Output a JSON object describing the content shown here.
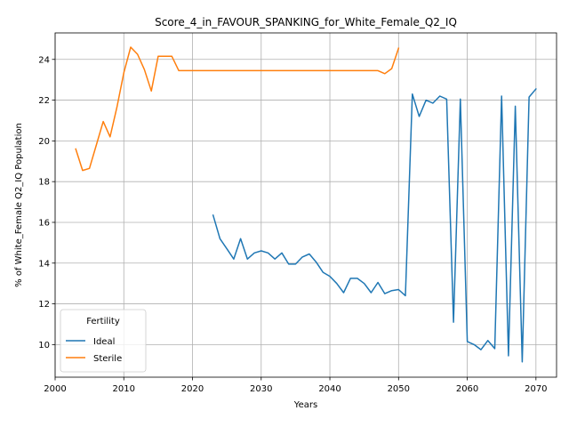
{
  "chart_data": {
    "type": "line",
    "title": "Score_4_in_FAVOUR_SPANKING_for_White_Female_Q2_IQ",
    "xlabel": "Years",
    "ylabel": "% of White_Female Q2_IQ Population",
    "xlim": [
      2000,
      2073
    ],
    "ylim": [
      8.4,
      25.3
    ],
    "xticks": [
      2000,
      2010,
      2020,
      2030,
      2040,
      2050,
      2060,
      2070
    ],
    "yticks": [
      10,
      12,
      14,
      16,
      18,
      20,
      22,
      24
    ],
    "grid": true,
    "legend": {
      "title": "Fertility",
      "placement": "lower-left"
    },
    "series": [
      {
        "name": "Ideal",
        "color": "#1f77b4",
        "points": [
          [
            2023,
            16.35
          ],
          [
            2024,
            15.2
          ],
          [
            2025,
            14.7
          ],
          [
            2026,
            14.2
          ],
          [
            2027,
            15.2
          ],
          [
            2028,
            14.2
          ],
          [
            2029,
            14.5
          ],
          [
            2030,
            14.6
          ],
          [
            2031,
            14.5
          ],
          [
            2032,
            14.2
          ],
          [
            2033,
            14.5
          ],
          [
            2034,
            13.95
          ],
          [
            2035,
            13.95
          ],
          [
            2036,
            14.3
          ],
          [
            2037,
            14.45
          ],
          [
            2038,
            14.05
          ],
          [
            2039,
            13.55
          ],
          [
            2040,
            13.35
          ],
          [
            2041,
            13.0
          ],
          [
            2042,
            12.55
          ],
          [
            2043,
            13.25
          ],
          [
            2044,
            13.25
          ],
          [
            2045,
            13.0
          ],
          [
            2046,
            12.55
          ],
          [
            2047,
            13.05
          ],
          [
            2048,
            12.5
          ],
          [
            2049,
            12.65
          ],
          [
            2050,
            12.7
          ],
          [
            2051,
            12.4
          ],
          [
            2052,
            22.3
          ],
          [
            2053,
            21.2
          ],
          [
            2054,
            22.0
          ],
          [
            2055,
            21.85
          ],
          [
            2056,
            22.2
          ],
          [
            2057,
            22.05
          ],
          [
            2058,
            11.1
          ],
          [
            2059,
            22.05
          ],
          [
            2060,
            10.15
          ],
          [
            2061,
            10.0
          ],
          [
            2062,
            9.75
          ],
          [
            2063,
            10.2
          ],
          [
            2064,
            9.8
          ],
          [
            2065,
            22.2
          ],
          [
            2066,
            9.45
          ],
          [
            2067,
            21.7
          ],
          [
            2068,
            9.15
          ],
          [
            2069,
            22.15
          ],
          [
            2070,
            22.55
          ]
        ]
      },
      {
        "name": "Sterile",
        "color": "#ff7f0e",
        "points": [
          [
            2003,
            19.6
          ],
          [
            2004,
            18.55
          ],
          [
            2005,
            18.65
          ],
          [
            2006,
            19.8
          ],
          [
            2007,
            20.95
          ],
          [
            2008,
            20.2
          ],
          [
            2009,
            21.65
          ],
          [
            2010,
            23.35
          ],
          [
            2011,
            24.6
          ],
          [
            2012,
            24.25
          ],
          [
            2013,
            23.5
          ],
          [
            2014,
            22.45
          ],
          [
            2015,
            24.15
          ],
          [
            2016,
            24.15
          ],
          [
            2017,
            24.15
          ],
          [
            2018,
            23.45
          ],
          [
            2019,
            23.45
          ],
          [
            2020,
            23.45
          ],
          [
            2025,
            23.45
          ],
          [
            2030,
            23.45
          ],
          [
            2035,
            23.45
          ],
          [
            2040,
            23.45
          ],
          [
            2045,
            23.45
          ],
          [
            2047,
            23.45
          ],
          [
            2048,
            23.3
          ],
          [
            2049,
            23.55
          ],
          [
            2050,
            24.55
          ]
        ]
      }
    ]
  }
}
